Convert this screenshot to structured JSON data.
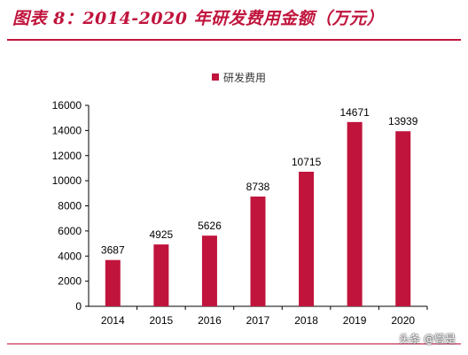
{
  "header": {
    "title": "图表 8：2014-2020 年研发费用金额（万元）"
  },
  "watermark": "头条 @管是",
  "colors": {
    "bar": "#c0143c",
    "accent": "#c0143c"
  },
  "chart_data": {
    "type": "bar",
    "categories": [
      "2014",
      "2015",
      "2016",
      "2017",
      "2018",
      "2019",
      "2020"
    ],
    "series": [
      {
        "name": "研发费用",
        "values": [
          3687,
          4925,
          5626,
          8738,
          10715,
          14671,
          13939
        ]
      }
    ],
    "yticks": [
      0,
      2000,
      4000,
      6000,
      8000,
      10000,
      12000,
      14000,
      16000
    ],
    "ylim": [
      0,
      16000
    ],
    "grid": false,
    "legend_position": "top-center",
    "data_labels": true
  }
}
